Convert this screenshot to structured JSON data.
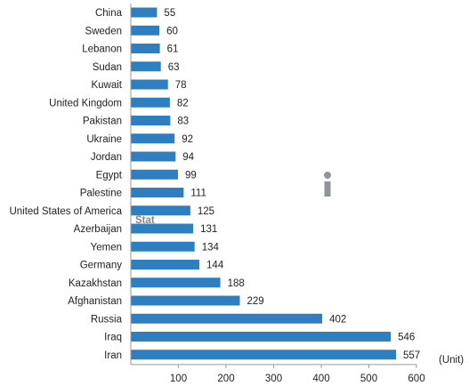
{
  "chart_data": {
    "type": "bar",
    "orientation": "horizontal",
    "categories": [
      "China",
      "Sweden",
      "Lebanon",
      "Sudan",
      "Kuwait",
      "United Kingdom",
      "Pakistan",
      "Ukraine",
      "Jordan",
      "Egypt",
      "Palestine",
      "United States of America",
      "Azerbaijan",
      "Yemen",
      "Germany",
      "Kazakhstan",
      "Afghanistan",
      "Russia",
      "Iraq",
      "Iran"
    ],
    "values": [
      55,
      60,
      61,
      63,
      78,
      82,
      83,
      92,
      94,
      99,
      111,
      125,
      131,
      134,
      144,
      188,
      229,
      402,
      546,
      557
    ],
    "xlim": [
      0,
      600
    ],
    "xticks": [
      100,
      200,
      300,
      400,
      500,
      600
    ],
    "unit_label": "(Unit)",
    "grid": false,
    "bar_color": "#2e7fc1",
    "data_labels": true
  }
}
